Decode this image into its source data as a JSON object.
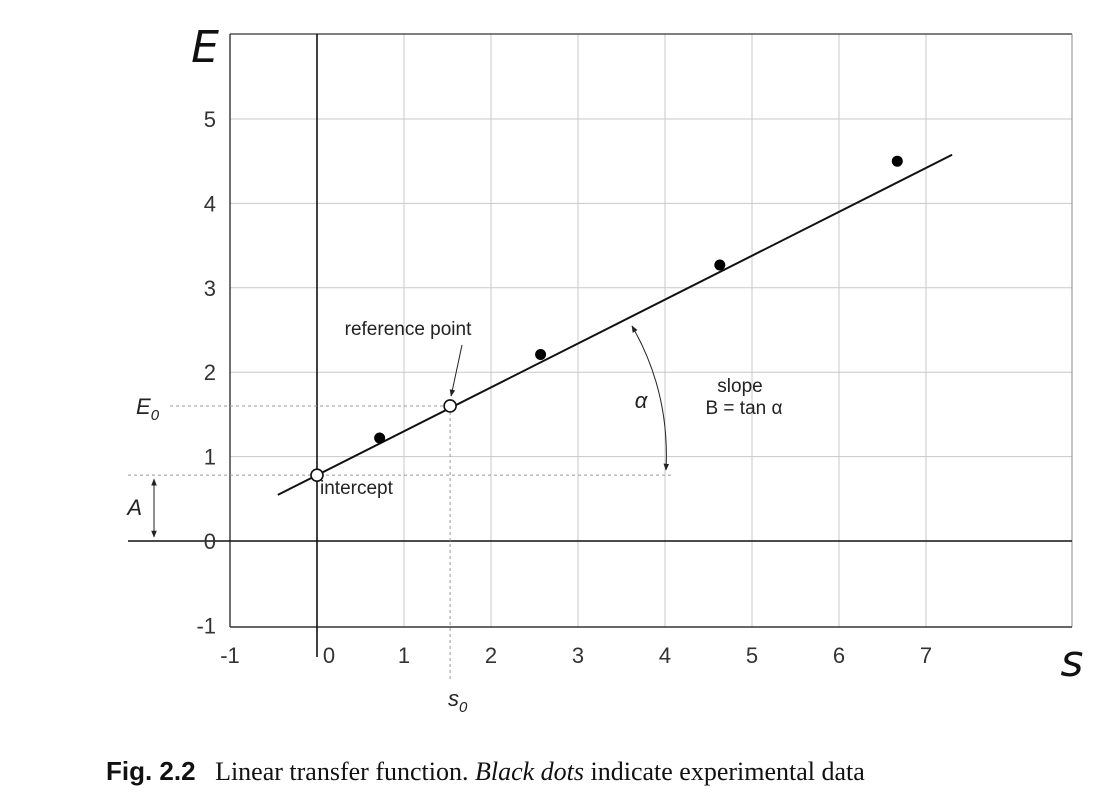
{
  "chart_data": {
    "type": "line",
    "xlabel": "s",
    "ylabel": "E",
    "xlim": [
      -1,
      7.8
    ],
    "ylim": [
      -1,
      6
    ],
    "x_ticks": [
      "-1",
      "0",
      "1",
      "2",
      "3",
      "4",
      "5",
      "6",
      "7"
    ],
    "y_ticks": [
      "-1",
      "0",
      "1",
      "2",
      "3",
      "4",
      "5"
    ],
    "grid": true,
    "line": {
      "intercept": 0.78,
      "slope": 0.52,
      "x_range": [
        -0.45,
        7.3
      ]
    },
    "experimental_points": [
      {
        "x": 0.72,
        "y": 1.22
      },
      {
        "x": 2.57,
        "y": 2.21
      },
      {
        "x": 4.63,
        "y": 3.27
      },
      {
        "x": 6.67,
        "y": 4.5
      }
    ],
    "reference_point": {
      "x": 1.53,
      "y": 1.6
    },
    "intercept_point": {
      "x": 0,
      "y": 0.78
    },
    "annotations": {
      "reference_point": "reference point",
      "intercept": "intercept",
      "alpha": "α",
      "slope": "slope",
      "slope_formula": "B = tan α",
      "E0": "E0",
      "s0": "s0",
      "A": "A"
    }
  },
  "caption": {
    "fig_label": "Fig. 2.2",
    "text_1": "Linear transfer function.",
    "italic": "Black dots",
    "text_2": "indicate experimental data"
  }
}
